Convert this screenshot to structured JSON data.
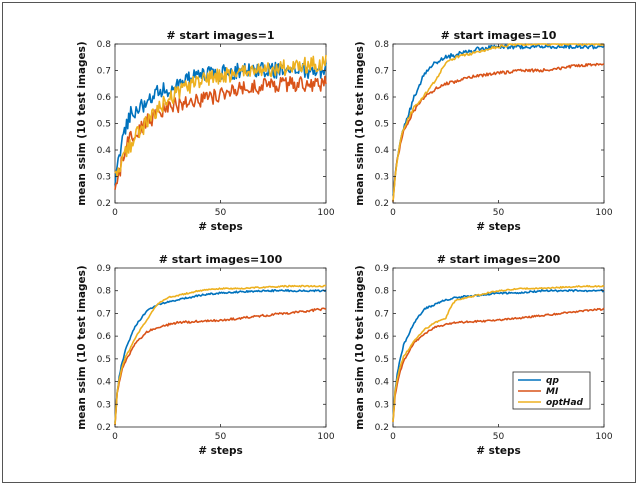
{
  "chart_data": [
    {
      "type": "line",
      "title": "# start images=1",
      "xlabel": "# steps",
      "ylabel": "mean ssim (10 test images)",
      "xlim": [
        0,
        100
      ],
      "ylim": [
        0.2,
        0.8
      ],
      "xticks": [
        "0",
        "50",
        "100"
      ],
      "yticks": [
        "0.2",
        "0.3",
        "0.4",
        "0.5",
        "0.6",
        "0.7",
        "0.8"
      ],
      "series": [
        {
          "name": "qp",
          "color": "#0072BD",
          "x": [
            0,
            2,
            4,
            6,
            8,
            10,
            15,
            20,
            25,
            30,
            40,
            50,
            60,
            70,
            80,
            90,
            100
          ],
          "y": [
            0.26,
            0.38,
            0.46,
            0.51,
            0.55,
            0.55,
            0.58,
            0.62,
            0.63,
            0.65,
            0.68,
            0.69,
            0.7,
            0.7,
            0.7,
            0.7,
            0.7
          ],
          "noise": 0.03
        },
        {
          "name": "MI",
          "color": "#D95319",
          "x": [
            0,
            2,
            4,
            6,
            8,
            10,
            15,
            20,
            25,
            30,
            40,
            50,
            60,
            70,
            80,
            90,
            100
          ],
          "y": [
            0.24,
            0.31,
            0.38,
            0.42,
            0.45,
            0.47,
            0.51,
            0.53,
            0.56,
            0.57,
            0.59,
            0.61,
            0.63,
            0.64,
            0.65,
            0.65,
            0.65
          ],
          "noise": 0.03
        },
        {
          "name": "optHad",
          "color": "#EDB120",
          "x": [
            0,
            2,
            4,
            6,
            8,
            10,
            15,
            20,
            25,
            30,
            40,
            50,
            60,
            70,
            80,
            90,
            100
          ],
          "y": [
            0.3,
            0.34,
            0.37,
            0.4,
            0.43,
            0.46,
            0.5,
            0.55,
            0.59,
            0.62,
            0.66,
            0.68,
            0.69,
            0.7,
            0.71,
            0.72,
            0.73
          ],
          "noise": 0.03
        }
      ]
    },
    {
      "type": "line",
      "title": "# start images=10",
      "xlabel": "# steps",
      "ylabel": "mean ssim (10 test images)",
      "xlim": [
        0,
        100
      ],
      "ylim": [
        0.2,
        0.8
      ],
      "xticks": [
        "0",
        "50",
        "100"
      ],
      "yticks": [
        "0.2",
        "0.3",
        "0.4",
        "0.5",
        "0.6",
        "0.7",
        "0.8"
      ],
      "series": [
        {
          "name": "qp",
          "color": "#0072BD",
          "x": [
            0,
            1,
            2,
            3,
            4,
            5,
            8,
            10,
            15,
            20,
            25,
            30,
            40,
            50,
            60,
            70,
            80,
            90,
            100
          ],
          "y": [
            0.22,
            0.3,
            0.36,
            0.41,
            0.45,
            0.48,
            0.55,
            0.6,
            0.69,
            0.73,
            0.75,
            0.76,
            0.78,
            0.79,
            0.79,
            0.79,
            0.79,
            0.79,
            0.79
          ],
          "noise": 0.008
        },
        {
          "name": "MI",
          "color": "#D95319",
          "x": [
            0,
            1,
            2,
            3,
            4,
            5,
            8,
            10,
            15,
            20,
            25,
            30,
            40,
            50,
            60,
            70,
            80,
            90,
            100
          ],
          "y": [
            0.21,
            0.3,
            0.36,
            0.4,
            0.44,
            0.47,
            0.52,
            0.55,
            0.6,
            0.63,
            0.65,
            0.66,
            0.68,
            0.69,
            0.7,
            0.7,
            0.71,
            0.72,
            0.72
          ],
          "noise": 0.006
        },
        {
          "name": "optHad",
          "color": "#EDB120",
          "x": [
            0,
            1,
            2,
            3,
            4,
            5,
            8,
            10,
            15,
            20,
            25,
            30,
            40,
            50,
            60,
            70,
            80,
            90,
            100
          ],
          "y": [
            0.21,
            0.3,
            0.36,
            0.41,
            0.45,
            0.48,
            0.53,
            0.56,
            0.61,
            0.66,
            0.73,
            0.75,
            0.77,
            0.79,
            0.8,
            0.8,
            0.8,
            0.8,
            0.8
          ],
          "noise": 0.005
        }
      ]
    },
    {
      "type": "line",
      "title": "# start images=100",
      "xlabel": "# steps",
      "ylabel": "mean ssim (10 test images)",
      "xlim": [
        0,
        100
      ],
      "ylim": [
        0.2,
        0.9
      ],
      "xticks": [
        "0",
        "50",
        "100"
      ],
      "yticks": [
        "0.2",
        "0.3",
        "0.4",
        "0.5",
        "0.6",
        "0.7",
        "0.8",
        "0.9"
      ],
      "series": [
        {
          "name": "qp",
          "color": "#0072BD",
          "x": [
            0,
            1,
            2,
            3,
            4,
            5,
            8,
            10,
            15,
            20,
            25,
            30,
            40,
            50,
            60,
            70,
            80,
            90,
            100
          ],
          "y": [
            0.22,
            0.35,
            0.42,
            0.47,
            0.5,
            0.54,
            0.61,
            0.65,
            0.71,
            0.74,
            0.75,
            0.76,
            0.78,
            0.79,
            0.795,
            0.8,
            0.8,
            0.8,
            0.8
          ],
          "noise": 0.004
        },
        {
          "name": "MI",
          "color": "#D95319",
          "x": [
            0,
            1,
            2,
            3,
            4,
            5,
            8,
            10,
            15,
            20,
            25,
            30,
            40,
            50,
            60,
            70,
            80,
            90,
            100
          ],
          "y": [
            0.21,
            0.35,
            0.4,
            0.44,
            0.47,
            0.49,
            0.54,
            0.57,
            0.62,
            0.64,
            0.65,
            0.66,
            0.665,
            0.67,
            0.68,
            0.69,
            0.7,
            0.71,
            0.72
          ],
          "noise": 0.005
        },
        {
          "name": "optHad",
          "color": "#EDB120",
          "x": [
            0,
            1,
            2,
            3,
            4,
            5,
            8,
            10,
            15,
            20,
            25,
            30,
            40,
            50,
            60,
            70,
            80,
            90,
            100
          ],
          "y": [
            0.21,
            0.35,
            0.41,
            0.45,
            0.48,
            0.51,
            0.56,
            0.6,
            0.67,
            0.74,
            0.77,
            0.78,
            0.8,
            0.81,
            0.81,
            0.815,
            0.82,
            0.82,
            0.82
          ],
          "noise": 0.003
        }
      ]
    },
    {
      "type": "line",
      "title": "# start images=200",
      "xlabel": "# steps",
      "ylabel": "mean ssim (10 test images)",
      "xlim": [
        0,
        100
      ],
      "ylim": [
        0.2,
        0.9
      ],
      "xticks": [
        "0",
        "50",
        "100"
      ],
      "yticks": [
        "0.2",
        "0.3",
        "0.4",
        "0.5",
        "0.6",
        "0.7",
        "0.8",
        "0.9"
      ],
      "legend": {
        "position": "lower-right",
        "entries": [
          "qp",
          "MI",
          "optHad"
        ]
      },
      "series": [
        {
          "name": "qp",
          "color": "#0072BD",
          "x": [
            0,
            1,
            2,
            3,
            4,
            5,
            8,
            10,
            15,
            20,
            25,
            30,
            40,
            50,
            60,
            70,
            80,
            90,
            100
          ],
          "y": [
            0.23,
            0.36,
            0.43,
            0.48,
            0.52,
            0.56,
            0.62,
            0.66,
            0.72,
            0.74,
            0.76,
            0.77,
            0.78,
            0.79,
            0.79,
            0.8,
            0.8,
            0.8,
            0.8
          ],
          "noise": 0.004
        },
        {
          "name": "MI",
          "color": "#D95319",
          "x": [
            0,
            1,
            2,
            3,
            4,
            5,
            8,
            10,
            15,
            20,
            25,
            30,
            40,
            50,
            60,
            70,
            80,
            90,
            100
          ],
          "y": [
            0.22,
            0.34,
            0.39,
            0.43,
            0.46,
            0.49,
            0.54,
            0.57,
            0.61,
            0.64,
            0.65,
            0.66,
            0.665,
            0.67,
            0.68,
            0.69,
            0.7,
            0.71,
            0.72
          ],
          "noise": 0.004
        },
        {
          "name": "optHad",
          "color": "#EDB120",
          "x": [
            0,
            1,
            2,
            3,
            4,
            5,
            8,
            10,
            15,
            20,
            25,
            28,
            30,
            40,
            50,
            60,
            70,
            80,
            90,
            100
          ],
          "y": [
            0.22,
            0.36,
            0.41,
            0.45,
            0.48,
            0.51,
            0.55,
            0.58,
            0.63,
            0.66,
            0.68,
            0.74,
            0.76,
            0.78,
            0.8,
            0.81,
            0.81,
            0.815,
            0.82,
            0.82
          ],
          "noise": 0.003
        }
      ]
    }
  ]
}
